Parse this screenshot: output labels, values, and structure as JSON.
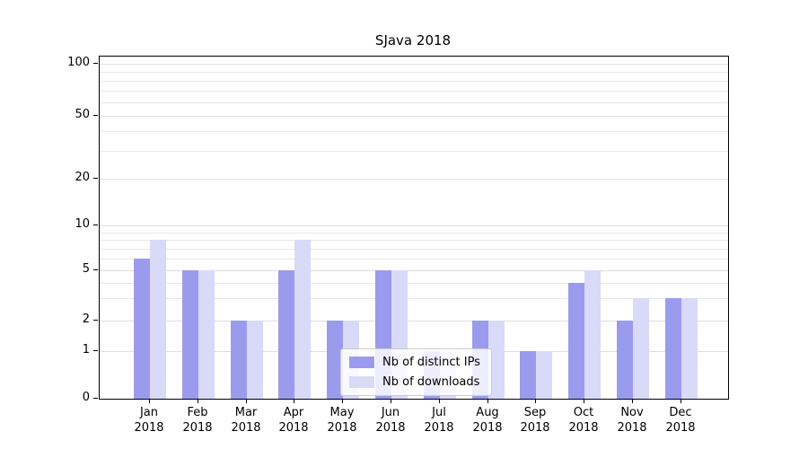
{
  "chart_data": {
    "type": "bar",
    "title": "SJava 2018",
    "categories": [
      "Jan",
      "Feb",
      "Mar",
      "Apr",
      "May",
      "Jun",
      "Jul",
      "Aug",
      "Sep",
      "Oct",
      "Nov",
      "Dec"
    ],
    "category_year": "2018",
    "series": [
      {
        "name": "Nb of distinct IPs",
        "color": "#9b9bee",
        "values": [
          6,
          5,
          2,
          5,
          2,
          5,
          1,
          2,
          1,
          4,
          2,
          3
        ]
      },
      {
        "name": "Nb of downloads",
        "color": "#d9d9f8",
        "values": [
          8,
          5,
          2,
          8,
          2,
          5,
          1,
          2,
          1,
          5,
          3,
          3
        ]
      }
    ],
    "yticks": [
      0,
      1,
      2,
      5,
      10,
      20,
      50,
      100
    ],
    "minor_gridlines": [
      1,
      2,
      3,
      4,
      5,
      6,
      7,
      8,
      9,
      10,
      20,
      30,
      40,
      50,
      60,
      70,
      80,
      90,
      100
    ],
    "ylim": [
      0,
      110
    ],
    "yscale": "symlog",
    "grid": "horizontal",
    "legend_position": "bottom-center",
    "xlabel": "",
    "ylabel": ""
  }
}
